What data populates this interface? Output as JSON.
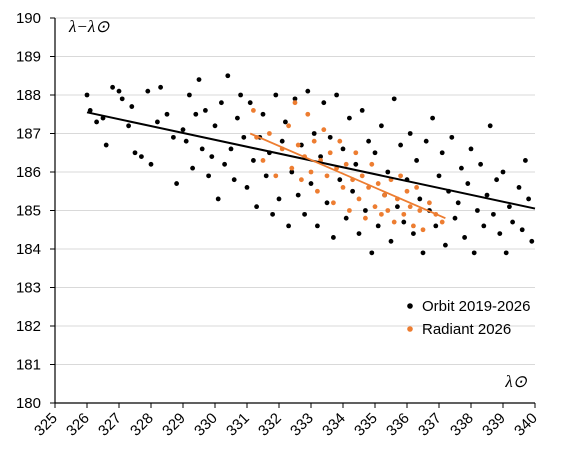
{
  "chart_data": {
    "type": "scatter",
    "title": "",
    "xlabel": "λ⊙",
    "ylabel": "λ−λ⊙",
    "xlim": [
      325,
      340
    ],
    "ylim": [
      180,
      190
    ],
    "x_ticks": [
      "325",
      "326",
      "327",
      "328",
      "329",
      "330",
      "331",
      "332",
      "333",
      "334",
      "335",
      "336",
      "337",
      "338",
      "339",
      "340"
    ],
    "y_ticks": [
      "180",
      "181",
      "182",
      "183",
      "184",
      "185",
      "186",
      "187",
      "188",
      "189",
      "190"
    ],
    "grid": "horizontal major gridlines",
    "legend_position": "bottom-right",
    "series": [
      {
        "name": "Orbit 2019-2026",
        "color": "#000000",
        "points": [
          [
            326.0,
            188.0
          ],
          [
            326.1,
            187.6
          ],
          [
            326.3,
            187.3
          ],
          [
            326.5,
            187.4
          ],
          [
            326.6,
            186.7
          ],
          [
            326.8,
            188.2
          ],
          [
            327.0,
            188.1
          ],
          [
            327.1,
            187.9
          ],
          [
            327.3,
            187.2
          ],
          [
            327.4,
            187.7
          ],
          [
            327.5,
            186.5
          ],
          [
            327.7,
            186.4
          ],
          [
            327.9,
            188.1
          ],
          [
            328.0,
            186.2
          ],
          [
            328.2,
            187.3
          ],
          [
            328.3,
            188.2
          ],
          [
            328.5,
            187.5
          ],
          [
            328.7,
            186.9
          ],
          [
            328.8,
            185.7
          ],
          [
            329.0,
            187.1
          ],
          [
            329.1,
            186.8
          ],
          [
            329.2,
            188.0
          ],
          [
            329.3,
            186.1
          ],
          [
            329.4,
            187.5
          ],
          [
            329.5,
            188.4
          ],
          [
            329.6,
            186.6
          ],
          [
            329.7,
            187.6
          ],
          [
            329.8,
            185.9
          ],
          [
            329.9,
            186.4
          ],
          [
            330.0,
            187.2
          ],
          [
            330.1,
            185.3
          ],
          [
            330.2,
            187.8
          ],
          [
            330.3,
            186.2
          ],
          [
            330.4,
            188.5
          ],
          [
            330.5,
            186.6
          ],
          [
            330.6,
            185.8
          ],
          [
            330.7,
            187.4
          ],
          [
            330.8,
            188.0
          ],
          [
            330.9,
            186.9
          ],
          [
            331.0,
            185.6
          ],
          [
            331.1,
            187.8
          ],
          [
            331.2,
            186.3
          ],
          [
            331.3,
            185.1
          ],
          [
            331.4,
            186.9
          ],
          [
            331.5,
            187.5
          ],
          [
            331.6,
            185.9
          ],
          [
            331.7,
            186.5
          ],
          [
            331.8,
            184.9
          ],
          [
            331.9,
            188.0
          ],
          [
            332.0,
            185.3
          ],
          [
            332.1,
            186.8
          ],
          [
            332.2,
            187.3
          ],
          [
            332.3,
            184.6
          ],
          [
            332.4,
            186.0
          ],
          [
            332.5,
            187.9
          ],
          [
            332.6,
            185.4
          ],
          [
            332.7,
            186.7
          ],
          [
            332.8,
            184.9
          ],
          [
            332.9,
            188.1
          ],
          [
            333.0,
            185.7
          ],
          [
            333.1,
            187.0
          ],
          [
            333.2,
            184.6
          ],
          [
            333.3,
            186.4
          ],
          [
            333.4,
            187.8
          ],
          [
            333.5,
            185.2
          ],
          [
            333.6,
            186.9
          ],
          [
            333.7,
            184.3
          ],
          [
            333.8,
            188.0
          ],
          [
            333.9,
            185.8
          ],
          [
            334.0,
            186.6
          ],
          [
            334.1,
            184.8
          ],
          [
            334.2,
            187.4
          ],
          [
            334.3,
            185.5
          ],
          [
            334.4,
            186.2
          ],
          [
            334.5,
            184.4
          ],
          [
            334.6,
            187.6
          ],
          [
            334.7,
            185.0
          ],
          [
            334.8,
            186.8
          ],
          [
            334.9,
            183.9
          ],
          [
            335.0,
            186.5
          ],
          [
            335.1,
            184.6
          ],
          [
            335.2,
            187.2
          ],
          [
            335.3,
            185.4
          ],
          [
            335.4,
            186.0
          ],
          [
            335.5,
            184.2
          ],
          [
            335.6,
            187.9
          ],
          [
            335.7,
            185.1
          ],
          [
            335.8,
            186.7
          ],
          [
            335.9,
            184.7
          ],
          [
            336.0,
            185.8
          ],
          [
            336.1,
            187.0
          ],
          [
            336.2,
            184.4
          ],
          [
            336.3,
            186.3
          ],
          [
            336.4,
            185.3
          ],
          [
            336.5,
            183.9
          ],
          [
            336.6,
            186.8
          ],
          [
            336.7,
            185.0
          ],
          [
            336.8,
            187.4
          ],
          [
            336.9,
            184.6
          ],
          [
            337.0,
            185.9
          ],
          [
            337.1,
            186.5
          ],
          [
            337.2,
            184.1
          ],
          [
            337.3,
            185.5
          ],
          [
            337.4,
            186.9
          ],
          [
            337.5,
            184.8
          ],
          [
            337.6,
            185.2
          ],
          [
            337.7,
            186.1
          ],
          [
            337.8,
            184.3
          ],
          [
            337.9,
            185.7
          ],
          [
            338.0,
            186.6
          ],
          [
            338.1,
            183.9
          ],
          [
            338.2,
            185.0
          ],
          [
            338.3,
            186.2
          ],
          [
            338.4,
            184.6
          ],
          [
            338.5,
            185.4
          ],
          [
            338.6,
            187.2
          ],
          [
            338.7,
            184.9
          ],
          [
            338.8,
            185.8
          ],
          [
            338.9,
            184.4
          ],
          [
            339.0,
            186.0
          ],
          [
            339.1,
            183.9
          ],
          [
            339.2,
            185.1
          ],
          [
            339.3,
            184.7
          ],
          [
            339.5,
            185.6
          ],
          [
            339.6,
            184.5
          ],
          [
            339.7,
            186.3
          ],
          [
            339.8,
            185.3
          ],
          [
            339.9,
            184.2
          ]
        ]
      },
      {
        "name": "Radiant 2026",
        "color": "#ED7D31",
        "points": [
          [
            331.2,
            187.6
          ],
          [
            331.3,
            186.9
          ],
          [
            331.5,
            186.3
          ],
          [
            331.7,
            187.0
          ],
          [
            331.9,
            185.9
          ],
          [
            332.1,
            186.6
          ],
          [
            332.3,
            187.2
          ],
          [
            332.4,
            186.1
          ],
          [
            332.5,
            187.8
          ],
          [
            332.6,
            186.7
          ],
          [
            332.7,
            185.8
          ],
          [
            332.8,
            186.4
          ],
          [
            332.9,
            187.5
          ],
          [
            333.0,
            186.0
          ],
          [
            333.1,
            186.8
          ],
          [
            333.2,
            185.5
          ],
          [
            333.3,
            186.3
          ],
          [
            333.4,
            187.1
          ],
          [
            333.5,
            185.9
          ],
          [
            333.6,
            186.5
          ],
          [
            333.7,
            185.2
          ],
          [
            333.8,
            186.1
          ],
          [
            333.9,
            186.8
          ],
          [
            334.0,
            185.6
          ],
          [
            334.1,
            186.2
          ],
          [
            334.2,
            185.0
          ],
          [
            334.3,
            185.8
          ],
          [
            334.4,
            186.5
          ],
          [
            334.5,
            185.3
          ],
          [
            334.6,
            185.9
          ],
          [
            334.7,
            184.8
          ],
          [
            334.8,
            185.6
          ],
          [
            334.9,
            186.2
          ],
          [
            335.0,
            185.1
          ],
          [
            335.1,
            185.7
          ],
          [
            335.2,
            184.9
          ],
          [
            335.3,
            185.4
          ],
          [
            335.4,
            185.0
          ],
          [
            335.5,
            185.8
          ],
          [
            335.6,
            184.7
          ],
          [
            335.7,
            185.3
          ],
          [
            335.8,
            185.9
          ],
          [
            335.9,
            184.9
          ],
          [
            336.0,
            185.5
          ],
          [
            336.1,
            185.1
          ],
          [
            336.2,
            184.6
          ],
          [
            336.3,
            185.6
          ],
          [
            336.4,
            185.0
          ],
          [
            336.5,
            184.5
          ],
          [
            336.7,
            185.2
          ],
          [
            336.9,
            184.9
          ],
          [
            337.1,
            184.7
          ]
        ]
      }
    ],
    "trendlines": [
      {
        "series": "Orbit 2019-2026",
        "color": "#000000",
        "from": [
          326.0,
          187.55
        ],
        "to": [
          340.0,
          185.05
        ]
      },
      {
        "series": "Radiant 2026",
        "color": "#ED7D31",
        "from": [
          331.1,
          187.0
        ],
        "to": [
          337.2,
          184.8
        ]
      }
    ]
  }
}
